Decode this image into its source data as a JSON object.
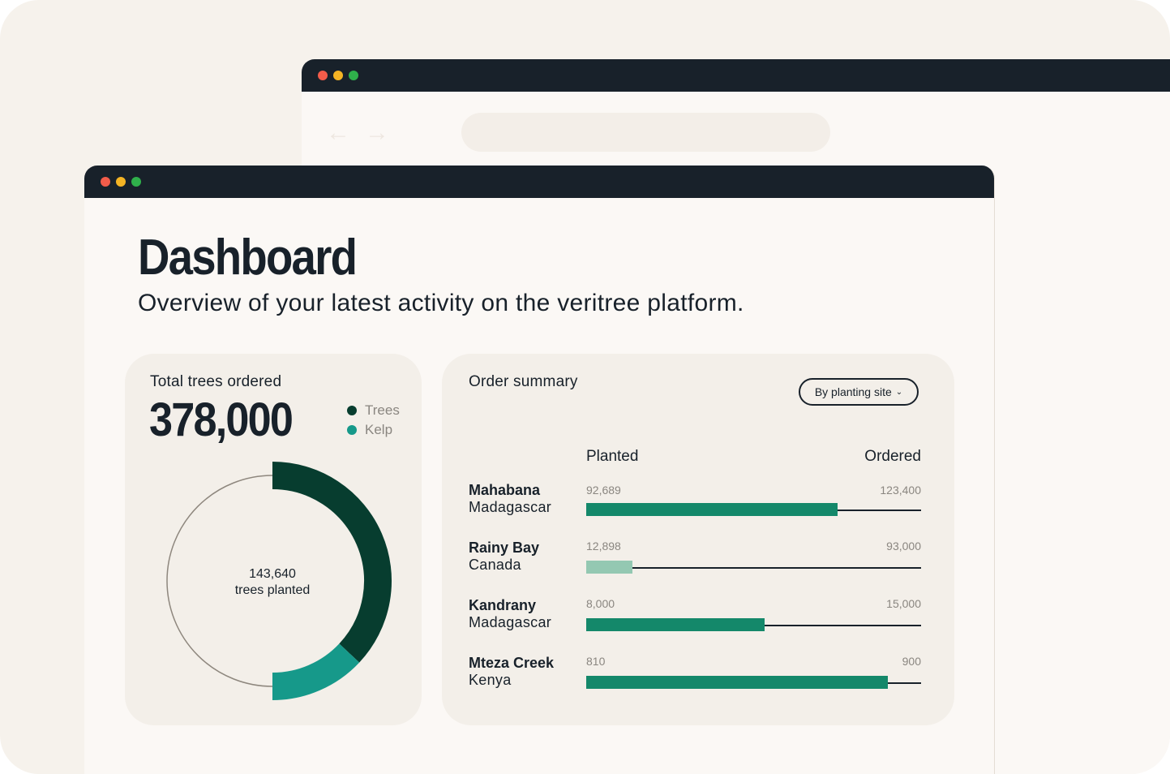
{
  "colors": {
    "trees": "#073d2f",
    "kelp": "#16998a",
    "bar_fill": "#14886a",
    "bar_fill_light": "#94c8b2",
    "titlebar": "#18212a"
  },
  "page": {
    "title": "Dashboard",
    "subtitle": "Overview of your latest activity on the veritree platform."
  },
  "total_card": {
    "label": "Total trees ordered",
    "value": "378,000",
    "legend": [
      {
        "label": "Trees",
        "color": "#073d2f"
      },
      {
        "label": "Kelp",
        "color": "#16998a"
      }
    ],
    "center_value": "143,640",
    "center_label": "trees planted"
  },
  "orders_card": {
    "label": "Order summary",
    "dropdown_label": "By planting site",
    "col_planted": "Planted",
    "col_ordered": "Ordered",
    "sites": [
      {
        "name": "Mahabana",
        "country": "Madagascar",
        "planted": "92,689",
        "ordered": "123,400",
        "planted_value": 92689,
        "ordered_value": 123400
      },
      {
        "name": "Rainy Bay",
        "country": "Canada",
        "planted": "12,898",
        "ordered": "93,000",
        "planted_value": 12898,
        "ordered_value": 93000
      },
      {
        "name": "Kandrany",
        "country": "Madagascar",
        "planted": "8,000",
        "ordered": "15,000",
        "planted_value": 8000,
        "ordered_value": 15000
      },
      {
        "name": "Mteza Creek",
        "country": "Kenya",
        "planted": "810",
        "ordered": "900",
        "planted_value": 810,
        "ordered_value": 900
      }
    ]
  },
  "chart_data": {
    "type": "pie",
    "categories": [
      "Trees",
      "Kelp"
    ],
    "values": [
      0.37,
      0.13
    ],
    "unit": "fraction of ring"
  }
}
